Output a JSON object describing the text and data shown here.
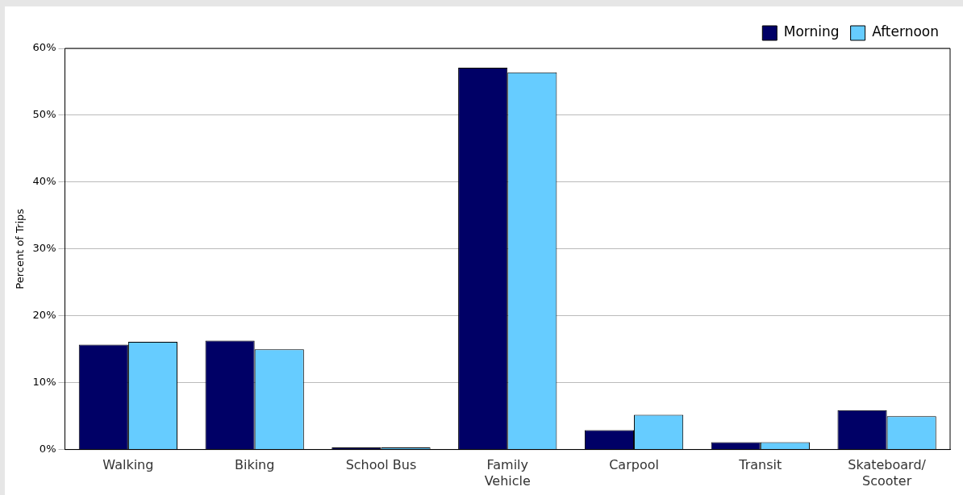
{
  "chart_data": {
    "type": "bar",
    "ylabel": "Percent of Trips",
    "categories": [
      "Walking",
      "Biking",
      "School Bus",
      "Family Vehicle",
      "Carpool",
      "Transit",
      "Skateboard/ Scooter"
    ],
    "series": [
      {
        "name": "Morning",
        "color": "#000066",
        "values": [
          15.7,
          16.3,
          0.3,
          57.1,
          2.9,
          1.1,
          5.9
        ]
      },
      {
        "name": "Afternoon",
        "color": "#66ccff",
        "values": [
          16.1,
          15.0,
          0.3,
          56.4,
          5.2,
          1.1,
          5.0
        ]
      }
    ],
    "ylim": [
      0,
      60
    ],
    "yticks": [
      {
        "value": 0,
        "label": "0%"
      },
      {
        "value": 10,
        "label": "10%"
      },
      {
        "value": 20,
        "label": "20%"
      },
      {
        "value": 30,
        "label": "30%"
      },
      {
        "value": 40,
        "label": "40%"
      },
      {
        "value": 50,
        "label": "50%"
      },
      {
        "value": 60,
        "label": "60%"
      }
    ],
    "grid": "y",
    "legend": "top right"
  }
}
